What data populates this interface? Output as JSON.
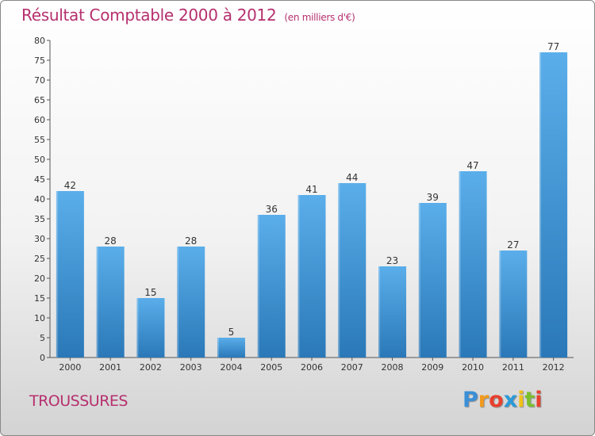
{
  "chart_data": {
    "type": "bar",
    "title": "Résultat Comptable 2000 à 2012",
    "subtitle": "(en milliers d'€)",
    "categories": [
      "2000",
      "2001",
      "2002",
      "2003",
      "2004",
      "2005",
      "2006",
      "2007",
      "2008",
      "2009",
      "2010",
      "2011",
      "2012"
    ],
    "values": [
      42,
      28,
      15,
      28,
      5,
      36,
      41,
      44,
      23,
      39,
      47,
      27,
      77
    ],
    "ylim": [
      0,
      80
    ],
    "yticks": [
      0,
      5,
      10,
      15,
      20,
      25,
      30,
      35,
      40,
      45,
      50,
      55,
      60,
      65,
      70,
      75,
      80
    ],
    "xlabel": "",
    "ylabel": "",
    "grid": false,
    "bar_color_top": "#5aaeea",
    "bar_color_bottom": "#2a78b8"
  },
  "footer": {
    "commune": "TROUSSURES",
    "logo": {
      "letters": [
        "P",
        "r",
        "o",
        "x",
        "i",
        "t",
        "i"
      ],
      "colors": [
        "#3a8fd6",
        "#f29a1e",
        "#e8402e",
        "#2a9ad8",
        "#f2c018",
        "#7cbf2e",
        "#e8402e"
      ]
    }
  }
}
